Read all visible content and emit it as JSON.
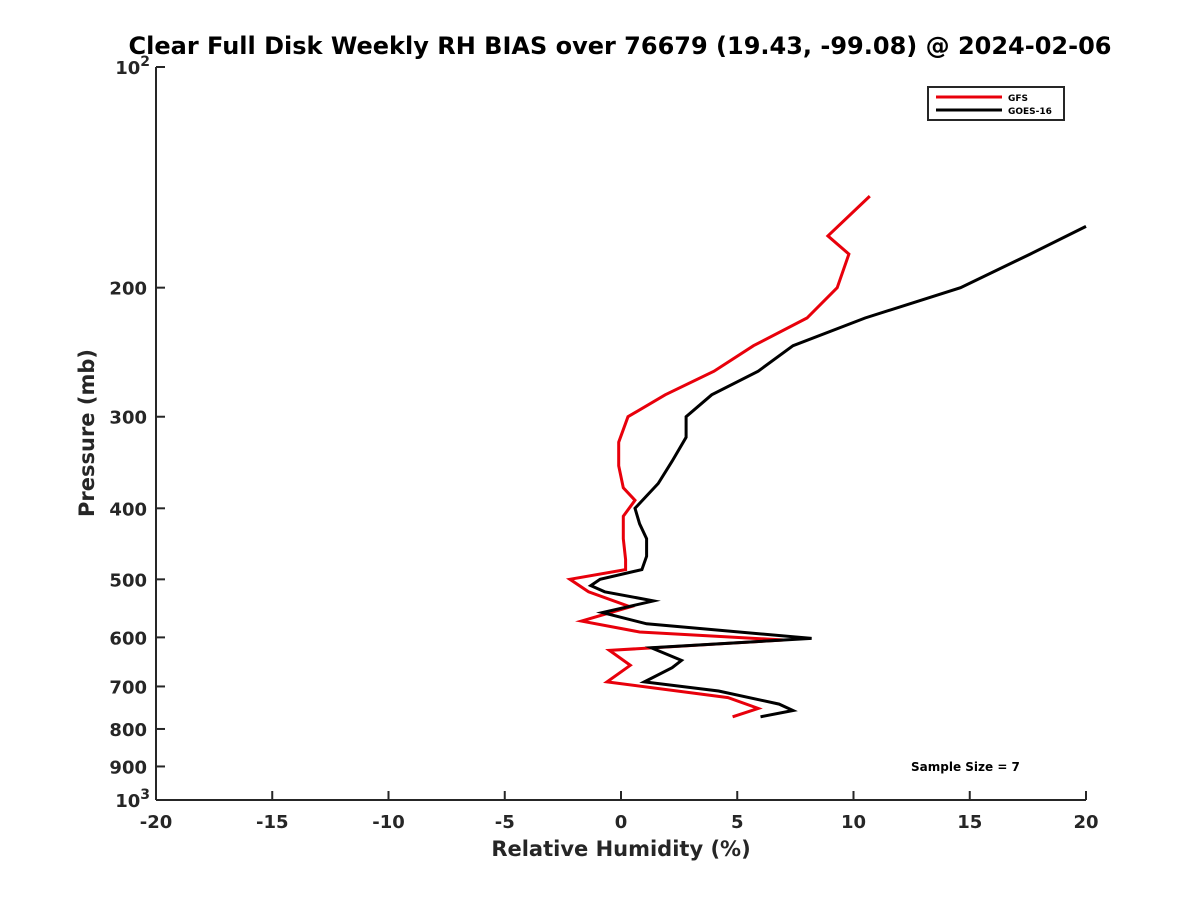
{
  "chart_data": {
    "type": "line",
    "title": "Clear Full Disk Weekly RH BIAS over 76679 (19.43, -99.08) @ 2024-02-06",
    "xlabel": "Relative Humidity (%)",
    "ylabel": "Pressure (mb)",
    "xlim": [
      -20,
      20
    ],
    "ylim": [
      100,
      1000
    ],
    "y_scale": "log",
    "y_reversed": true,
    "x_ticks": [
      "-20",
      "-15",
      "-10",
      "-5",
      "0",
      "5",
      "10",
      "15",
      "20"
    ],
    "y_ticks": [
      {
        "value": 100,
        "label": "10",
        "sup": "2"
      },
      {
        "value": 200,
        "label": "200",
        "sup": ""
      },
      {
        "value": 300,
        "label": "300",
        "sup": ""
      },
      {
        "value": 400,
        "label": "400",
        "sup": ""
      },
      {
        "value": 500,
        "label": "500",
        "sup": ""
      },
      {
        "value": 600,
        "label": "600",
        "sup": ""
      },
      {
        "value": 700,
        "label": "700",
        "sup": ""
      },
      {
        "value": 800,
        "label": "800",
        "sup": ""
      },
      {
        "value": 900,
        "label": "900",
        "sup": ""
      },
      {
        "value": 1000,
        "label": "10",
        "sup": "3"
      }
    ],
    "legend_position": "top-right",
    "grid": false,
    "annotation": "Sample Size = 7",
    "series": [
      {
        "name": "GFS",
        "color": "#e8000b",
        "points": [
          {
            "x": 10.7,
            "p": 150
          },
          {
            "x": 8.9,
            "p": 170
          },
          {
            "x": 9.8,
            "p": 180
          },
          {
            "x": 9.3,
            "p": 200
          },
          {
            "x": 8.0,
            "p": 220
          },
          {
            "x": 5.7,
            "p": 240
          },
          {
            "x": 4.0,
            "p": 260
          },
          {
            "x": 1.9,
            "p": 280
          },
          {
            "x": 0.3,
            "p": 300
          },
          {
            "x": -0.1,
            "p": 325
          },
          {
            "x": -0.1,
            "p": 350
          },
          {
            "x": 0.1,
            "p": 375
          },
          {
            "x": 0.6,
            "p": 390
          },
          {
            "x": 0.1,
            "p": 410
          },
          {
            "x": 0.1,
            "p": 440
          },
          {
            "x": 0.2,
            "p": 470
          },
          {
            "x": 0.2,
            "p": 485
          },
          {
            "x": -2.2,
            "p": 500
          },
          {
            "x": -1.4,
            "p": 520
          },
          {
            "x": 0.4,
            "p": 545
          },
          {
            "x": -1.7,
            "p": 570
          },
          {
            "x": 0.8,
            "p": 590
          },
          {
            "x": 7.0,
            "p": 605
          },
          {
            "x": -0.5,
            "p": 625
          },
          {
            "x": 0.4,
            "p": 655
          },
          {
            "x": -0.6,
            "p": 690
          },
          {
            "x": 4.6,
            "p": 725
          },
          {
            "x": 5.9,
            "p": 750
          },
          {
            "x": 4.8,
            "p": 770
          }
        ]
      },
      {
        "name": "GOES-16",
        "color": "#000000",
        "points": [
          {
            "x": 20.0,
            "p": 165
          },
          {
            "x": 17.6,
            "p": 180
          },
          {
            "x": 14.6,
            "p": 200
          },
          {
            "x": 10.5,
            "p": 220
          },
          {
            "x": 7.4,
            "p": 240
          },
          {
            "x": 5.9,
            "p": 260
          },
          {
            "x": 3.9,
            "p": 280
          },
          {
            "x": 2.8,
            "p": 300
          },
          {
            "x": 2.8,
            "p": 320
          },
          {
            "x": 2.2,
            "p": 345
          },
          {
            "x": 1.6,
            "p": 370
          },
          {
            "x": 0.6,
            "p": 400
          },
          {
            "x": 0.8,
            "p": 420
          },
          {
            "x": 1.1,
            "p": 440
          },
          {
            "x": 1.1,
            "p": 465
          },
          {
            "x": 0.9,
            "p": 485
          },
          {
            "x": -0.9,
            "p": 500
          },
          {
            "x": -1.3,
            "p": 510
          },
          {
            "x": -0.7,
            "p": 520
          },
          {
            "x": 1.4,
            "p": 535
          },
          {
            "x": -0.8,
            "p": 555
          },
          {
            "x": 1.1,
            "p": 575
          },
          {
            "x": 8.2,
            "p": 602
          },
          {
            "x": 1.3,
            "p": 620
          },
          {
            "x": 2.6,
            "p": 645
          },
          {
            "x": 2.2,
            "p": 660
          },
          {
            "x": 1.0,
            "p": 690
          },
          {
            "x": 4.2,
            "p": 710
          },
          {
            "x": 6.8,
            "p": 740
          },
          {
            "x": 7.4,
            "p": 755
          },
          {
            "x": 6.0,
            "p": 770
          }
        ]
      }
    ]
  }
}
